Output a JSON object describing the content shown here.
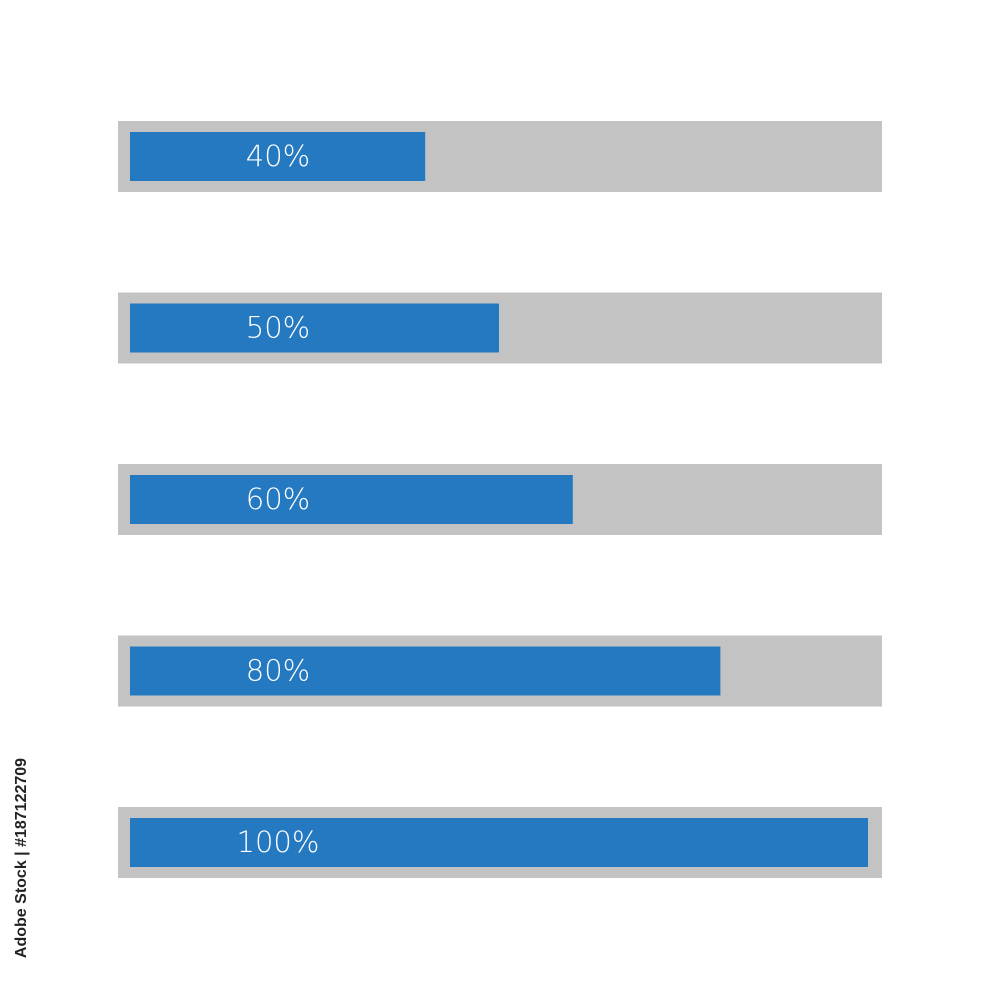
{
  "progress_bars": [
    {
      "value": 40,
      "label": "40%"
    },
    {
      "value": 50,
      "label": "50%"
    },
    {
      "value": 60,
      "label": "60%"
    },
    {
      "value": 80,
      "label": "80%"
    },
    {
      "value": 100,
      "label": "100%"
    }
  ],
  "range": [
    0,
    100
  ],
  "track_color": "#c3c3c3",
  "fill_color": "#2479c1",
  "stock_label": "Adobe Stock | #187122709"
}
